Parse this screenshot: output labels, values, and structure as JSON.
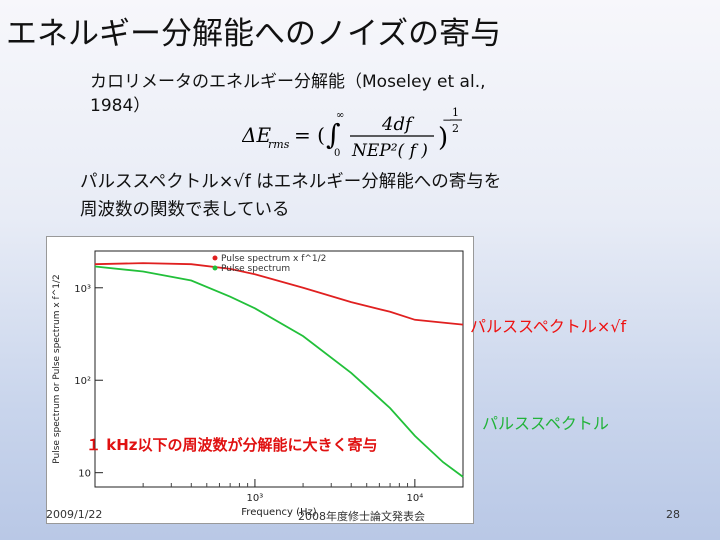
{
  "slide": {
    "title": "エネルギー分解能へのノイズの寄与",
    "text1_line1": "カロリメータのエネルギー分解能（Moseley et al.,",
    "text1_line2": "1984）",
    "text2_line1": "パルススペクトル×√f はエネルギー分解能への寄与を",
    "text2_line2": "周波数の関数で表している",
    "label_red": "パルススペクトル×√f",
    "label_green": "パルススペクトル",
    "note": "１ kHz以下の周波数が分解能に大きく寄与",
    "footer_date": "2009/1/22",
    "footer_center": "2008年度修士論文発表会",
    "footer_page": "28"
  },
  "formula": {
    "lhs": "ΔE",
    "lhs_sub": "rms",
    "eq": "= (",
    "int_upper": "∞",
    "int_lower": "0",
    "numerator": "4df",
    "denominator": "NEP²( f )",
    "close": ")",
    "exp_num": "1",
    "exp_den": "2",
    "exp_sign": "−"
  },
  "chart_data": {
    "type": "line",
    "xlabel": "Frequency (Hz)",
    "ylabel": "Pulse spectrum or Pulse spectrum x f^1/2",
    "xscale": "log",
    "yscale": "log",
    "x_tick_labels": [
      "10³",
      "10⁴"
    ],
    "y_tick_labels": [
      "10³",
      "10²",
      "10"
    ],
    "legend": [
      "Pulse spectrum x f^1/2",
      "Pulse spectrum"
    ],
    "colors": {
      "red": "#e02020",
      "green": "#22c03a"
    },
    "series": [
      {
        "name": "Pulse spectrum x f^1/2",
        "x": [
          100,
          200,
          400,
          700,
          1000,
          2000,
          4000,
          7000,
          10000,
          15000,
          20000
        ],
        "y": [
          1800,
          1850,
          1800,
          1600,
          1400,
          1000,
          700,
          550,
          450,
          420,
          400
        ]
      },
      {
        "name": "Pulse spectrum",
        "x": [
          100,
          200,
          400,
          700,
          1000,
          2000,
          4000,
          7000,
          10000,
          15000,
          20000
        ],
        "y": [
          1700,
          1500,
          1200,
          800,
          600,
          300,
          120,
          50,
          25,
          13,
          9
        ]
      }
    ]
  }
}
